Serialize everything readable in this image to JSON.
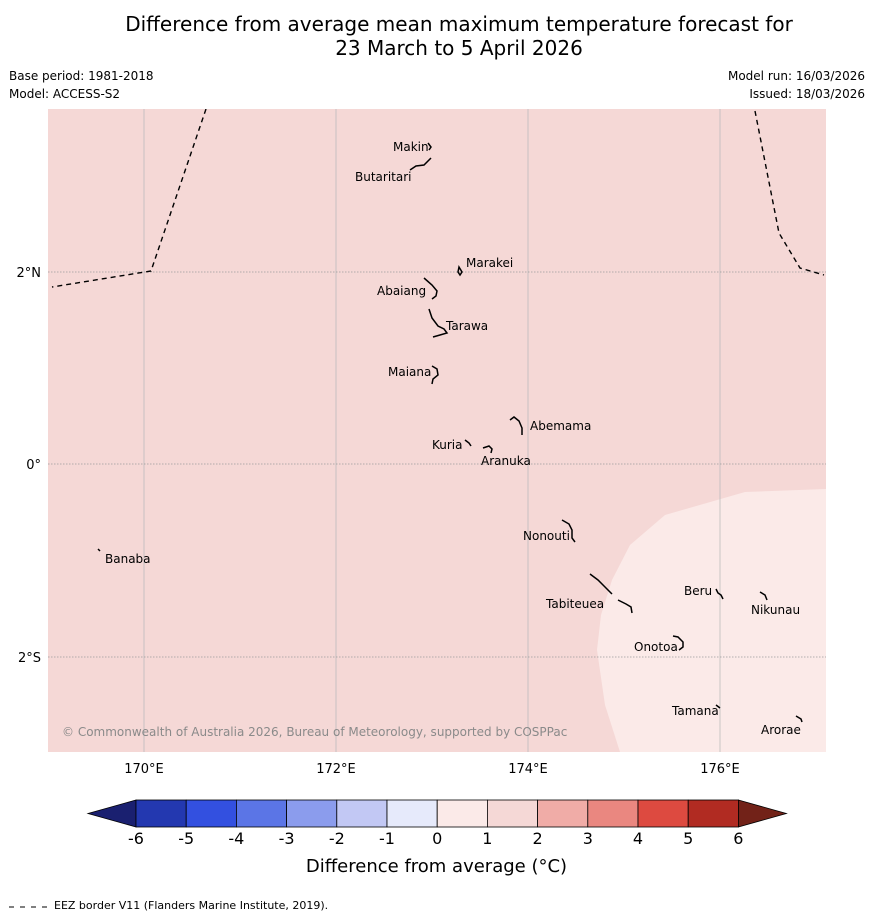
{
  "header": {
    "title_line1": "Difference from average mean maximum temperature forecast for",
    "title_line2": "23 March to 5 April 2026",
    "base_period": "Base period: 1981-2018",
    "model": "Model: ACCESS-S2",
    "model_run": "Model run: 16/03/2026",
    "issued": "Issued: 18/03/2026"
  },
  "map": {
    "lon_labels": [
      "170°E",
      "172°E",
      "174°E",
      "176°E"
    ],
    "lat_labels": [
      "2°N",
      "0°",
      "2°S"
    ],
    "islands": [
      "Makin",
      "Butaritari",
      "Marakei",
      "Abaiang",
      "Tarawa",
      "Maiana",
      "Abemama",
      "Kuria",
      "Aranuka",
      "Nonouti",
      "Banaba",
      "Beru",
      "Tabiteuea",
      "Nikunau",
      "Onotoa",
      "Tamana",
      "Arorae"
    ],
    "copyright": "© Commonwealth of Australia 2026, Bureau of Meteorology, supported by COSPPac",
    "colors": {
      "anomaly_1_to_2": "#f5d8d6",
      "anomaly_0_to_1": "#fbeae8"
    }
  },
  "colorbar": {
    "ticks": [
      "-6",
      "-5",
      "-4",
      "-3",
      "-2",
      "-1",
      "0",
      "1",
      "2",
      "3",
      "4",
      "5",
      "6"
    ],
    "colors": [
      "#1a2070",
      "#2338b0",
      "#3350e0",
      "#5b75e6",
      "#8b9ced",
      "#c2c8f4",
      "#e6eafb",
      "#fbeae8",
      "#f5d8d6",
      "#f0aca7",
      "#ea8780",
      "#dd4a40",
      "#b12b22",
      "#722218"
    ],
    "label": "Difference from average (°C)"
  },
  "footer": {
    "legend_text": "EEZ border V11 (Flanders Marine Institute, 2019)."
  }
}
